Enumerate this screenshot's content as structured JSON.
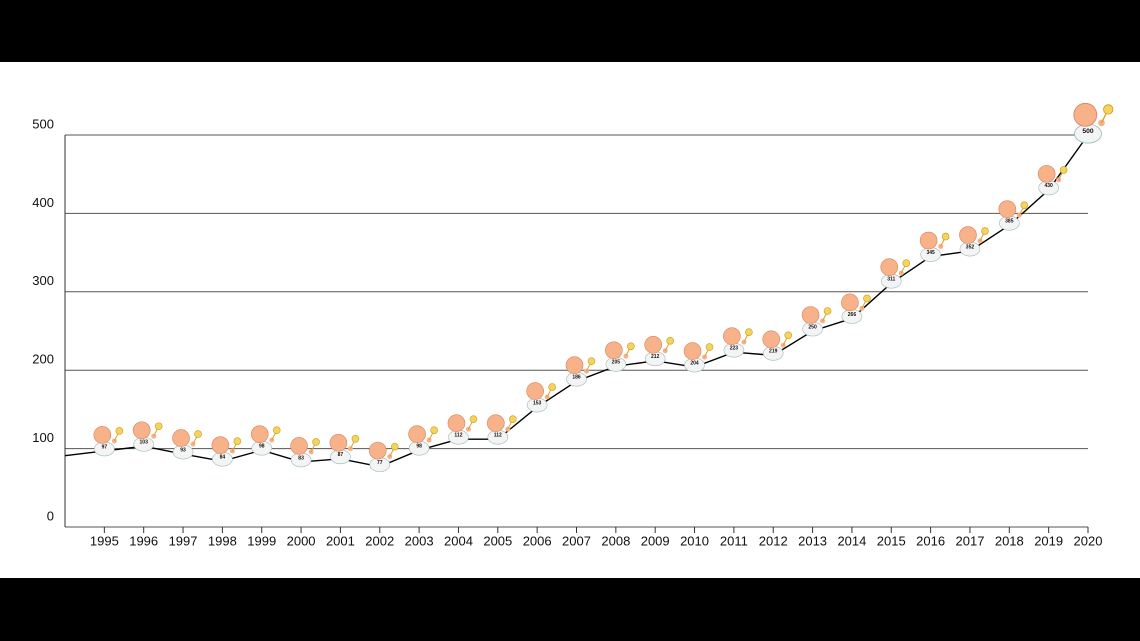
{
  "chart_data": {
    "type": "line",
    "x": [
      1994,
      1995,
      1996,
      1997,
      1998,
      1999,
      2000,
      2001,
      2002,
      2003,
      2004,
      2005,
      2006,
      2007,
      2008,
      2009,
      2010,
      2011,
      2012,
      2013,
      2014,
      2015,
      2016,
      2017,
      2018,
      2019,
      2020
    ],
    "values": [
      91,
      97,
      103,
      93,
      84,
      98,
      83,
      87,
      77,
      98,
      112,
      112,
      153,
      186,
      205,
      212,
      204,
      223,
      219,
      250,
      266,
      311,
      345,
      352,
      385,
      430,
      500
    ],
    "color": "#000000",
    "xlim": [
      1994,
      2020
    ],
    "xticks": [
      1995,
      1996,
      1997,
      1998,
      1999,
      2000,
      2001,
      2002,
      2003,
      2004,
      2005,
      2006,
      2007,
      2008,
      2009,
      2010,
      2011,
      2012,
      2013,
      2014,
      2015,
      2016,
      2017,
      2018,
      2019,
      2020
    ],
    "ylim": [
      0,
      500
    ],
    "yticks": [
      0,
      100,
      200,
      300,
      400,
      500
    ],
    "grid": true
  }
}
